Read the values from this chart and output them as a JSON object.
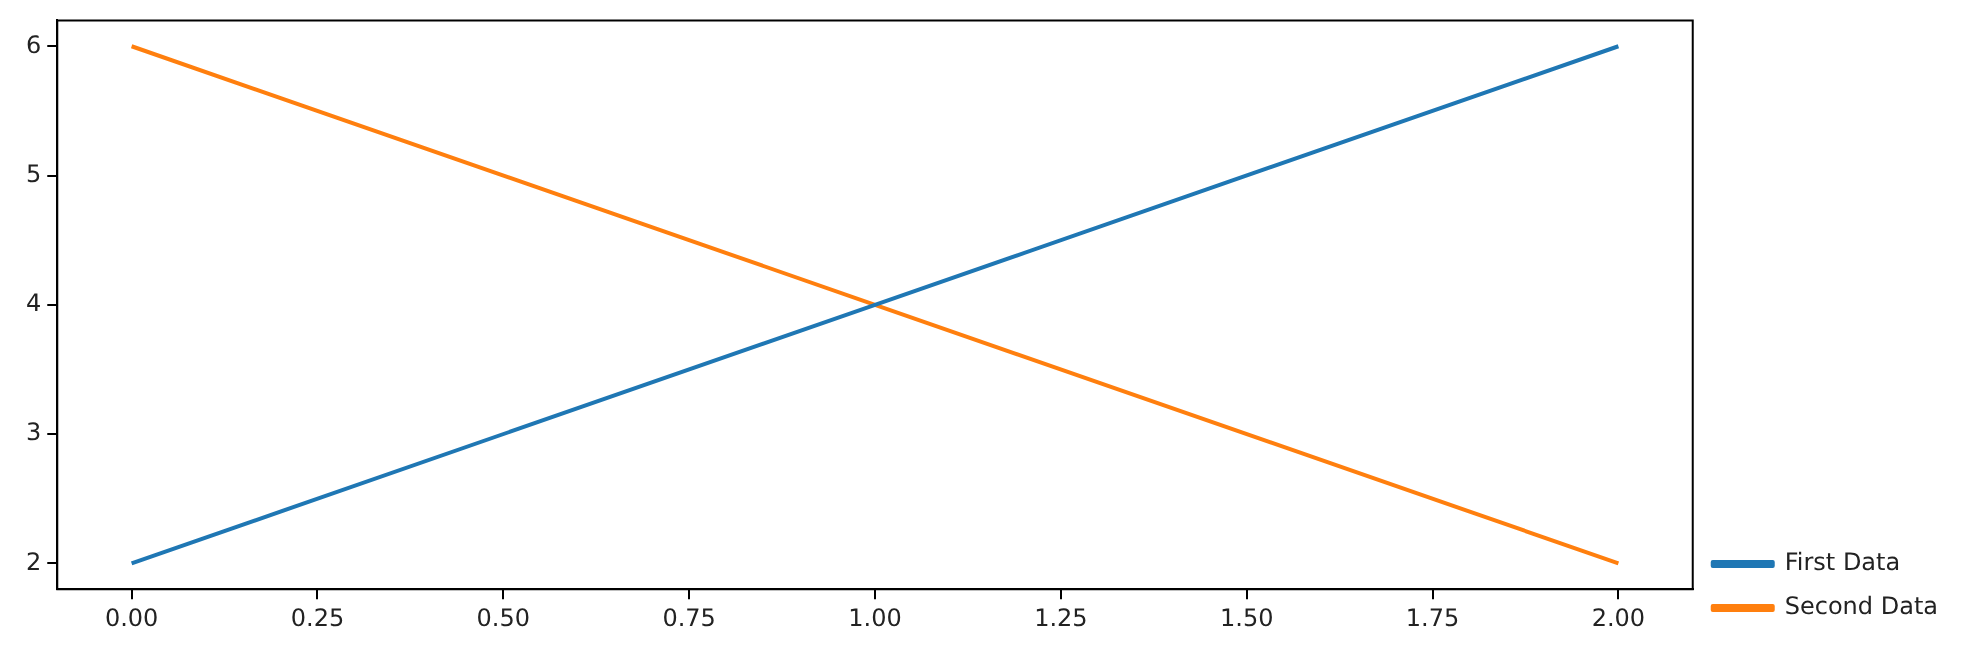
{
  "chart_data": {
    "type": "line",
    "x": [
      0,
      1,
      2
    ],
    "series": [
      {
        "name": "First Data",
        "color": "#1f77b4",
        "values": [
          2,
          4,
          6
        ]
      },
      {
        "name": "Second Data",
        "color": "#ff7f0e",
        "values": [
          6,
          4,
          2
        ]
      }
    ],
    "xlim": [
      -0.1,
      2.1
    ],
    "ylim": [
      1.8,
      6.2
    ],
    "xticks": [
      {
        "value": 0,
        "label": "0.00"
      },
      {
        "value": 0.25,
        "label": "0.25"
      },
      {
        "value": 0.5,
        "label": "0.50"
      },
      {
        "value": 0.75,
        "label": "0.75"
      },
      {
        "value": 1,
        "label": "1.00"
      },
      {
        "value": 1.25,
        "label": "1.25"
      },
      {
        "value": 1.5,
        "label": "1.50"
      },
      {
        "value": 1.75,
        "label": "1.75"
      },
      {
        "value": 2,
        "label": "2.00"
      }
    ],
    "yticks": [
      2,
      3,
      4,
      5,
      6
    ],
    "grid": false,
    "legend": "right",
    "marker": "none",
    "line_style": "solid"
  }
}
